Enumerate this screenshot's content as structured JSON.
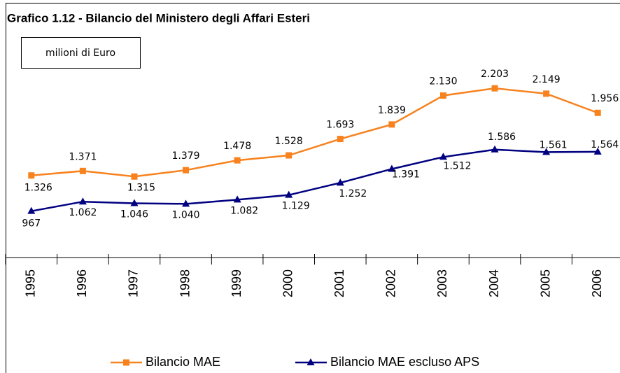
{
  "chart_data": {
    "type": "line",
    "title": "Grafico 1.12 - Bilancio del Ministero degli Affari Esteri",
    "annotation": "milioni di Euro",
    "categories": [
      "1995",
      "1996",
      "1997",
      "1998",
      "1999",
      "2000",
      "2001",
      "2002",
      "2003",
      "2004",
      "2005",
      "2006"
    ],
    "ylim": [
      500,
      2500
    ],
    "series": [
      {
        "name": "Bilancio MAE",
        "color": "#f7821e",
        "marker": "square",
        "values": [
          1326,
          1371,
          1315,
          1379,
          1478,
          1528,
          1693,
          1839,
          2130,
          2203,
          2149,
          1956
        ],
        "value_labels": [
          "1.326",
          "1.371",
          "1.315",
          "1.379",
          "1.478",
          "1.528",
          "1.693",
          "1.839",
          "2.130",
          "2.203",
          "2.149",
          "1.956"
        ]
      },
      {
        "name": "Bilancio MAE escluso APS",
        "color": "#000080",
        "marker": "triangle",
        "values": [
          967,
          1062,
          1046,
          1040,
          1082,
          1129,
          1252,
          1391,
          1512,
          1586,
          1561,
          1564
        ],
        "value_labels": [
          "967",
          "1.062",
          "1.046",
          "1.040",
          "1.082",
          "1.129",
          "1.252",
          "1.391",
          "1.512",
          "1.586",
          "1.561",
          "1.564"
        ]
      }
    ]
  }
}
